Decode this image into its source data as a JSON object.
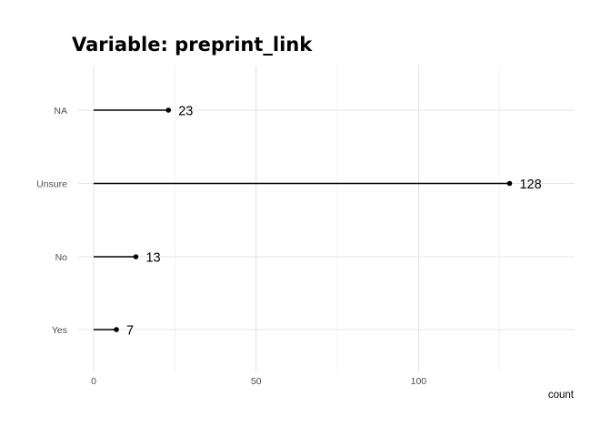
{
  "chart_data": {
    "type": "lollipop",
    "title": "Variable: preprint_link",
    "xlabel": "count",
    "ylabel": "",
    "categories": [
      "NA",
      "Unsure",
      "No",
      "Yes"
    ],
    "values": [
      23,
      128,
      13,
      7
    ],
    "xlim": [
      0,
      148
    ],
    "x_ticks": [
      0,
      50,
      100
    ],
    "x_minor_ticks": [
      25,
      75,
      125
    ],
    "grid": true,
    "legend": "none",
    "colors": {
      "line": "#000000",
      "point": "#000000",
      "grid": "#dcdcdc"
    }
  }
}
